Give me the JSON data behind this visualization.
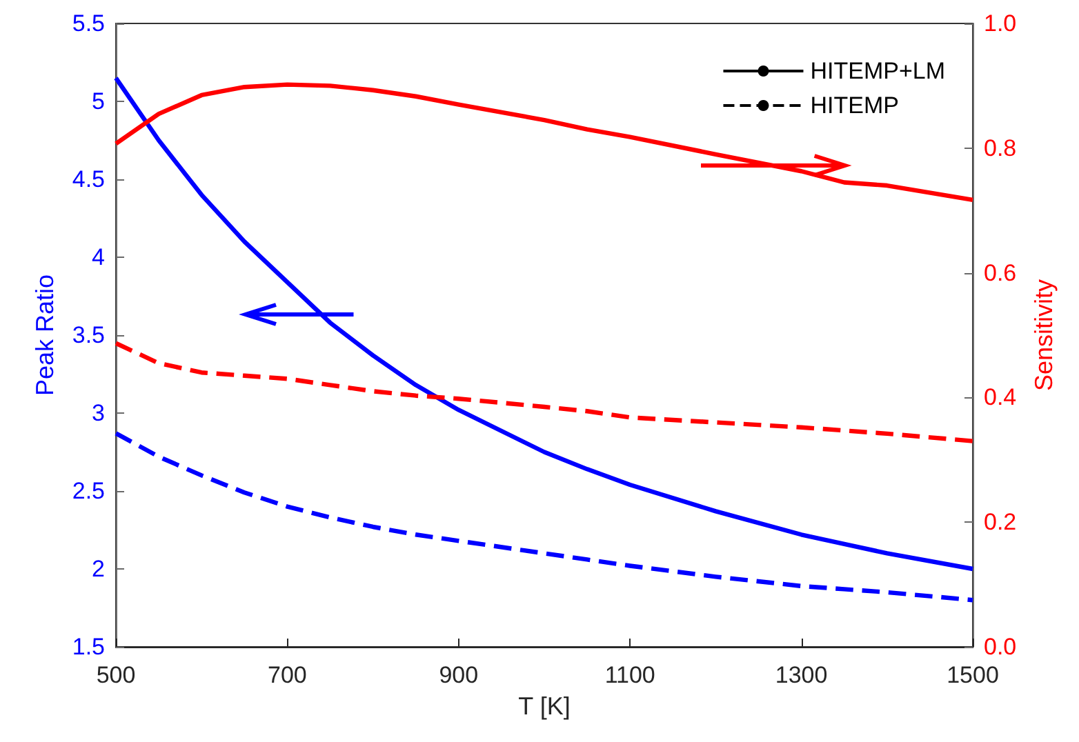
{
  "chart_data": {
    "type": "line",
    "xlabel": "T [K]",
    "ylabel": "Peak Ratio",
    "y2label": "Sensitivity",
    "x": [
      500,
      550,
      600,
      650,
      700,
      750,
      800,
      850,
      900,
      1000,
      1050,
      1100,
      1200,
      1300,
      1350,
      1400,
      1500
    ],
    "series": [
      {
        "name": "HITEMP+LM",
        "color": "#000000",
        "line_style": "solid",
        "values": [
          null,
          null,
          null,
          null,
          null,
          null,
          null,
          null,
          null,
          null,
          null,
          null,
          null,
          null,
          null,
          null,
          null
        ]
      },
      {
        "name": "HITEMP",
        "color": "#000000",
        "line_style": "dashed",
        "values": [
          null,
          null,
          null,
          null,
          null,
          null,
          null,
          null,
          null,
          null,
          null,
          null,
          null,
          null,
          null,
          null,
          null
        ]
      },
      {
        "color": "#0000ff",
        "line_style": "solid",
        "values": [
          5.15,
          4.75,
          4.4,
          4.1,
          3.84,
          3.58,
          3.37,
          3.18,
          3.02,
          2.75,
          2.64,
          2.54,
          2.37,
          2.22,
          2.16,
          2.1,
          2.0
        ]
      },
      {
        "color": "#0000ff",
        "line_style": "dashed",
        "values": [
          2.87,
          2.72,
          2.6,
          2.49,
          2.4,
          2.33,
          2.27,
          2.22,
          2.18,
          2.1,
          2.06,
          2.02,
          1.95,
          1.89,
          1.87,
          1.85,
          1.8
        ]
      },
      {
        "color": "#ff0000",
        "line_style": "solid",
        "axis": "y2",
        "values": [
          0.807,
          0.855,
          0.885,
          0.898,
          0.902,
          0.9,
          0.893,
          0.883,
          0.87,
          0.845,
          0.83,
          0.818,
          0.79,
          0.763,
          0.745,
          0.74,
          0.717
        ]
      },
      {
        "color": "#ff0000",
        "line_style": "dashed",
        "axis": "y2",
        "values": [
          0.487,
          0.455,
          0.44,
          0.435,
          0.43,
          0.42,
          0.41,
          0.403,
          0.398,
          0.385,
          0.378,
          0.368,
          0.36,
          0.352,
          0.347,
          0.342,
          0.33
        ]
      }
    ],
    "xlim": [
      500,
      1500
    ],
    "xticks": [
      500,
      700,
      900,
      1100,
      1300,
      1500
    ],
    "ylim": [
      1.5,
      5.5
    ],
    "yticks": [
      1.5,
      2,
      2.5,
      3,
      3.5,
      4,
      4.5,
      5,
      5.5
    ],
    "y2lim": [
      0,
      1
    ],
    "y2ticks": [
      {
        "value": 0,
        "label": "0.0"
      },
      {
        "value": 0.2,
        "label": "0.2"
      },
      {
        "value": 0.4,
        "label": "0.4"
      },
      {
        "value": 0.6,
        "label": "0.6"
      },
      {
        "value": 0.8,
        "label": "0.8"
      },
      {
        "value": 1,
        "label": "1.0"
      }
    ],
    "grid": false,
    "legend": "top right",
    "marker": "none"
  }
}
